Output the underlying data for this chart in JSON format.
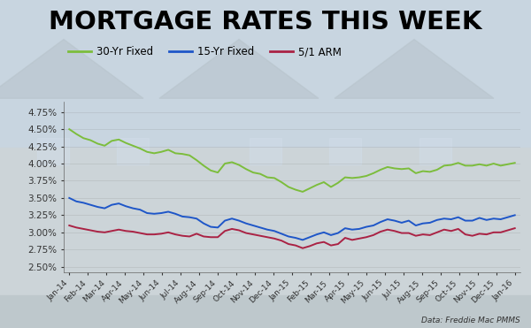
{
  "title": "MORTGAGE RATES THIS WEEK",
  "title_fontsize": 21,
  "title_fontweight": "bold",
  "source_text": "Data: Freddie Mac PMMS",
  "legend_labels": [
    "30-Yr Fixed",
    "15-Yr Fixed",
    "5/1 ARM"
  ],
  "x_labels": [
    "Jan-14",
    "Feb-14",
    "Mar-14",
    "Apr-14",
    "May-14",
    "Jun-14",
    "Jul-14",
    "Aug-14",
    "Sep-14",
    "Oct-14",
    "Nov-14",
    "Dec-14",
    "Jan-15",
    "Feb-15",
    "Mar-15",
    "Apr-15",
    "May-15",
    "Jun-15",
    "Jul-15",
    "Aug-15",
    "Sep-15",
    "Oct-15",
    "Nov-15",
    "Dec-15",
    "Jan-16"
  ],
  "yticks": [
    2.5,
    2.75,
    3.0,
    3.25,
    3.5,
    3.75,
    4.0,
    4.25,
    4.5,
    4.75
  ],
  "ylim": [
    2.42,
    4.9
  ],
  "rate_30yr": [
    4.5,
    4.43,
    4.37,
    4.34,
    4.29,
    4.26,
    4.33,
    4.35,
    4.3,
    4.26,
    4.22,
    4.17,
    4.15,
    4.17,
    4.2,
    4.15,
    4.14,
    4.12,
    4.05,
    3.97,
    3.9,
    3.87,
    4.0,
    4.02,
    3.98,
    3.92,
    3.87,
    3.85,
    3.8,
    3.79,
    3.73,
    3.66,
    3.62,
    3.59,
    3.64,
    3.69,
    3.73,
    3.66,
    3.72,
    3.8,
    3.79,
    3.8,
    3.82,
    3.86,
    3.91,
    3.95,
    3.93,
    3.92,
    3.93,
    3.86,
    3.89,
    3.88,
    3.91,
    3.97,
    3.98,
    4.01,
    3.97,
    3.97,
    3.99,
    3.97,
    4.0,
    3.97,
    3.99,
    4.01
  ],
  "rate_15yr": [
    3.5,
    3.45,
    3.43,
    3.4,
    3.37,
    3.35,
    3.4,
    3.42,
    3.38,
    3.35,
    3.33,
    3.28,
    3.27,
    3.28,
    3.3,
    3.27,
    3.23,
    3.22,
    3.2,
    3.13,
    3.08,
    3.07,
    3.17,
    3.2,
    3.17,
    3.13,
    3.1,
    3.07,
    3.04,
    3.02,
    2.98,
    2.94,
    2.92,
    2.89,
    2.93,
    2.97,
    3.0,
    2.96,
    2.99,
    3.06,
    3.04,
    3.05,
    3.08,
    3.1,
    3.15,
    3.19,
    3.17,
    3.14,
    3.17,
    3.1,
    3.13,
    3.14,
    3.18,
    3.2,
    3.19,
    3.22,
    3.17,
    3.17,
    3.21,
    3.18,
    3.2,
    3.19,
    3.22,
    3.25
  ],
  "rate_arm": [
    3.1,
    3.07,
    3.05,
    3.03,
    3.01,
    3.0,
    3.02,
    3.04,
    3.02,
    3.01,
    2.99,
    2.97,
    2.97,
    2.98,
    3.0,
    2.97,
    2.95,
    2.94,
    2.98,
    2.94,
    2.93,
    2.93,
    3.02,
    3.05,
    3.03,
    2.99,
    2.97,
    2.95,
    2.93,
    2.91,
    2.88,
    2.83,
    2.81,
    2.77,
    2.8,
    2.84,
    2.86,
    2.81,
    2.83,
    2.92,
    2.89,
    2.91,
    2.93,
    2.96,
    3.01,
    3.04,
    3.02,
    2.99,
    2.99,
    2.95,
    2.97,
    2.96,
    3.0,
    3.04,
    3.02,
    3.05,
    2.97,
    2.95,
    2.98,
    2.97,
    3.0,
    3.0,
    3.03,
    3.06
  ],
  "color_30yr": "#7cbd3c",
  "color_15yr": "#1e56c8",
  "color_arm": "#aa2244",
  "line_width": 1.4,
  "bg_colors": [
    "#c8d8e8",
    "#d8e4ee",
    "#e4ecf4",
    "#eef4f8",
    "#f4f8fc"
  ],
  "source_italic": true
}
